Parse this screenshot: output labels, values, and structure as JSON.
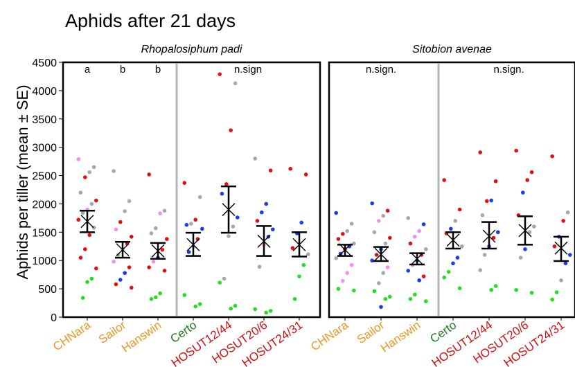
{
  "title": "Aphids after 21 days",
  "colors": {
    "mix_label": "#e8961e",
    "certo_label": "#1a7a1a",
    "hosut_label": "#cc1111",
    "divider": "#b5b5b5",
    "point_grey": "#a8a8a8",
    "point_pink": "#f28ef2",
    "point_red": "#e01010",
    "point_blue": "#1a3aee",
    "point_green": "#22dd22"
  },
  "chart_data": {
    "type": "scatter",
    "ylabel": "Aphids per tiller (mean ± SE)",
    "ylim": [
      0,
      4500
    ],
    "yticks": [
      0,
      500,
      1000,
      1500,
      2000,
      2500,
      3000,
      3500,
      4000,
      4500
    ],
    "categories": [
      {
        "label": "CHNara",
        "color": "#e8961e"
      },
      {
        "label": "Sailor",
        "color": "#e8961e"
      },
      {
        "label": "Hanswin",
        "color": "#e8961e"
      },
      {
        "label": "Certo",
        "color": "#1a7a1a"
      },
      {
        "label": "HOSUT12/44",
        "color": "#cc1111"
      },
      {
        "label": "HOSUT20/6",
        "color": "#cc1111"
      },
      {
        "label": "HOSUT24/31",
        "color": "#cc1111"
      }
    ],
    "panels": [
      {
        "title": "Rhopalosiphum padi",
        "annotations": [
          {
            "text": "a",
            "cat": 0
          },
          {
            "text": "b",
            "cat": 1
          },
          {
            "text": "b",
            "cat": 2
          },
          {
            "text": "n.sign",
            "cat": 4.55
          }
        ],
        "mean": [
          1690,
          1190,
          1170,
          1280,
          1900,
          1340,
          1280
        ],
        "se_low": [
          1500,
          1050,
          1030,
          1080,
          1490,
          1080,
          1070
        ],
        "se_high": [
          1880,
          1330,
          1310,
          1490,
          2310,
          1610,
          1500
        ],
        "points": [
          [
            [
              2790,
              "pink"
            ],
            [
              2650,
              "grey"
            ],
            [
              2560,
              "grey"
            ],
            [
              2470,
              "red"
            ],
            [
              2200,
              "grey"
            ],
            [
              2060,
              "red"
            ],
            [
              2000,
              "grey"
            ],
            [
              1900,
              "pink"
            ],
            [
              1840,
              "grey"
            ],
            [
              1720,
              "red"
            ],
            [
              1580,
              "grey"
            ],
            [
              1450,
              "red"
            ],
            [
              1200,
              "red"
            ],
            [
              1050,
              "red"
            ],
            [
              860,
              "red"
            ],
            [
              680,
              "green"
            ],
            [
              620,
              "green"
            ],
            [
              340,
              "green"
            ]
          ],
          [
            [
              2580,
              "grey"
            ],
            [
              2050,
              "grey"
            ],
            [
              1870,
              "grey"
            ],
            [
              1680,
              "red"
            ],
            [
              1550,
              "pink"
            ],
            [
              1420,
              "red"
            ],
            [
              1300,
              "red"
            ],
            [
              1200,
              "pink"
            ],
            [
              1100,
              "grey"
            ],
            [
              980,
              "pink"
            ],
            [
              880,
              "red"
            ],
            [
              780,
              "blue"
            ],
            [
              660,
              "blue"
            ],
            [
              580,
              "red"
            ],
            [
              520,
              "red"
            ]
          ],
          [
            [
              2520,
              "red"
            ],
            [
              1880,
              "grey"
            ],
            [
              1830,
              "pink"
            ],
            [
              1570,
              "grey"
            ],
            [
              1480,
              "grey"
            ],
            [
              1380,
              "red"
            ],
            [
              1190,
              "red"
            ],
            [
              1050,
              "blue"
            ],
            [
              980,
              "pink"
            ],
            [
              880,
              "red"
            ],
            [
              820,
              "red"
            ],
            [
              420,
              "green"
            ],
            [
              350,
              "green"
            ],
            [
              320,
              "green"
            ]
          ],
          [
            [
              2370,
              "red"
            ],
            [
              2120,
              "grey"
            ],
            [
              1720,
              "red"
            ],
            [
              1650,
              "grey"
            ],
            [
              1630,
              "blue"
            ],
            [
              1560,
              "blue"
            ],
            [
              1380,
              "red"
            ],
            [
              1250,
              "grey"
            ],
            [
              1150,
              "blue"
            ],
            [
              390,
              "green"
            ],
            [
              230,
              "green"
            ],
            [
              190,
              "green"
            ]
          ],
          [
            [
              4290,
              "red"
            ],
            [
              4130,
              "grey"
            ],
            [
              3300,
              "red"
            ],
            [
              2350,
              "red"
            ],
            [
              2180,
              "blue"
            ],
            [
              1760,
              "blue"
            ],
            [
              1600,
              "grey"
            ],
            [
              1430,
              "grey"
            ],
            [
              680,
              "grey"
            ],
            [
              610,
              "green"
            ],
            [
              200,
              "green"
            ],
            [
              150,
              "green"
            ]
          ],
          [
            [
              2800,
              "grey"
            ],
            [
              2590,
              "red"
            ],
            [
              2000,
              "blue"
            ],
            [
              1850,
              "blue"
            ],
            [
              1700,
              "red"
            ],
            [
              1550,
              "blue"
            ],
            [
              1420,
              "blue"
            ],
            [
              1280,
              "pink"
            ],
            [
              890,
              "grey"
            ],
            [
              140,
              "green"
            ],
            [
              110,
              "green"
            ],
            [
              80,
              "green"
            ]
          ],
          [
            [
              2620,
              "red"
            ],
            [
              2520,
              "red"
            ],
            [
              1670,
              "blue"
            ],
            [
              1480,
              "blue"
            ],
            [
              1220,
              "red"
            ],
            [
              1110,
              "grey"
            ],
            [
              920,
              "green"
            ],
            [
              720,
              "green"
            ],
            [
              320,
              "green"
            ]
          ]
        ]
      },
      {
        "title": "Sitobion avenae",
        "annotations": [
          {
            "text": "n.sign.",
            "cat": 1
          },
          {
            "text": "n.sign.",
            "cat": 4.55
          }
        ],
        "mean": [
          1190,
          1110,
          1030,
          1360,
          1430,
          1530,
          1220
        ],
        "se_low": [
          1080,
          990,
          930,
          1210,
          1210,
          1280,
          990
        ],
        "se_high": [
          1280,
          1240,
          1130,
          1500,
          1680,
          1780,
          1420
        ],
        "points": [
          [
            [
              1840,
              "blue"
            ],
            [
              1650,
              "grey"
            ],
            [
              1520,
              "grey"
            ],
            [
              1470,
              "red"
            ],
            [
              1380,
              "red"
            ],
            [
              1300,
              "grey"
            ],
            [
              1250,
              "blue"
            ],
            [
              1200,
              "red"
            ],
            [
              1120,
              "blue"
            ],
            [
              1040,
              "grey"
            ],
            [
              920,
              "pink"
            ],
            [
              780,
              "pink"
            ],
            [
              640,
              "pink"
            ],
            [
              500,
              "green"
            ],
            [
              470,
              "green"
            ]
          ],
          [
            [
              2010,
              "blue"
            ],
            [
              1880,
              "red"
            ],
            [
              1790,
              "grey"
            ],
            [
              1700,
              "pink"
            ],
            [
              1500,
              "grey"
            ],
            [
              1400,
              "red"
            ],
            [
              1300,
              "grey"
            ],
            [
              1200,
              "blue"
            ],
            [
              1100,
              "red"
            ],
            [
              1000,
              "blue"
            ],
            [
              880,
              "pink"
            ],
            [
              780,
              "grey"
            ],
            [
              600,
              "grey"
            ],
            [
              460,
              "green"
            ],
            [
              360,
              "green"
            ],
            [
              320,
              "green"
            ],
            [
              180,
              "blue"
            ]
          ],
          [
            [
              1750,
              "grey"
            ],
            [
              1640,
              "blue"
            ],
            [
              1520,
              "pink"
            ],
            [
              1420,
              "pink"
            ],
            [
              1300,
              "red"
            ],
            [
              1200,
              "grey"
            ],
            [
              1100,
              "red"
            ],
            [
              1000,
              "blue"
            ],
            [
              920,
              "pink"
            ],
            [
              820,
              "blue"
            ],
            [
              720,
              "red"
            ],
            [
              650,
              "blue"
            ],
            [
              400,
              "green"
            ],
            [
              320,
              "green"
            ],
            [
              280,
              "green"
            ]
          ],
          [
            [
              2420,
              "red"
            ],
            [
              1900,
              "red"
            ],
            [
              1700,
              "grey"
            ],
            [
              1560,
              "blue"
            ],
            [
              1480,
              "red"
            ],
            [
              1250,
              "grey"
            ],
            [
              1050,
              "blue"
            ],
            [
              950,
              "blue"
            ],
            [
              800,
              "green"
            ],
            [
              700,
              "green"
            ],
            [
              510,
              "green"
            ]
          ],
          [
            [
              2910,
              "red"
            ],
            [
              2400,
              "red"
            ],
            [
              2060,
              "blue"
            ],
            [
              2050,
              "red"
            ],
            [
              1800,
              "grey"
            ],
            [
              1500,
              "blue"
            ],
            [
              1400,
              "red"
            ],
            [
              1250,
              "blue"
            ],
            [
              1100,
              "grey"
            ],
            [
              830,
              "grey"
            ],
            [
              550,
              "green"
            ],
            [
              480,
              "green"
            ]
          ],
          [
            [
              2940,
              "red"
            ],
            [
              2560,
              "red"
            ],
            [
              2420,
              "red"
            ],
            [
              2200,
              "blue"
            ],
            [
              1800,
              "red"
            ],
            [
              1600,
              "grey"
            ],
            [
              1500,
              "grey"
            ],
            [
              1200,
              "blue"
            ],
            [
              1050,
              "grey"
            ],
            [
              480,
              "green"
            ],
            [
              430,
              "green"
            ]
          ],
          [
            [
              2840,
              "red"
            ],
            [
              1850,
              "grey"
            ],
            [
              1700,
              "red"
            ],
            [
              1420,
              "blue"
            ],
            [
              1250,
              "red"
            ],
            [
              1100,
              "blue"
            ],
            [
              950,
              "blue"
            ],
            [
              650,
              "grey"
            ],
            [
              440,
              "green"
            ],
            [
              310,
              "green"
            ]
          ]
        ]
      }
    ]
  }
}
